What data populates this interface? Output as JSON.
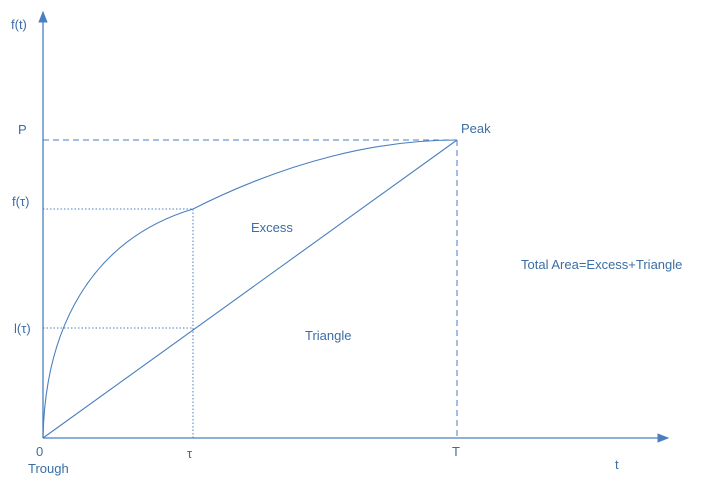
{
  "axes": {
    "y_label": "f(t)",
    "x_label": "t"
  },
  "ticks": {
    "y_P": "P",
    "y_f_tau": "f(τ)",
    "y_l_tau": "l(τ)",
    "x_zero": "0",
    "x_tau": "τ",
    "x_T": "T"
  },
  "labels": {
    "peak": "Peak",
    "trough": "Trough",
    "excess": "Excess",
    "triangle": "Triangle",
    "total_area": "Total Area=Excess+Triangle"
  },
  "colors": {
    "stroke": "#4a7fbf",
    "text": "#3a6ea5"
  }
}
